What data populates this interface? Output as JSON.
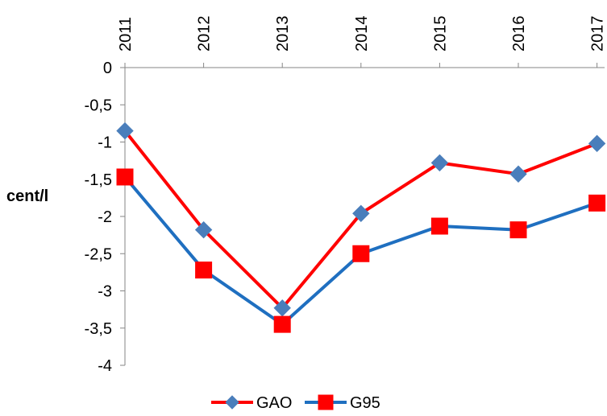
{
  "chart_data": {
    "type": "line",
    "x": [
      "2011",
      "2012",
      "2013",
      "2014",
      "2015",
      "2016",
      "2017"
    ],
    "ylabel": "cent/l",
    "ylim": [
      -4,
      0
    ],
    "yticks": [
      "0",
      "-0,5",
      "-1",
      "-1,5",
      "-2",
      "-2,5",
      "-3",
      "-3,5",
      "-4"
    ],
    "ytick_values": [
      0,
      -0.5,
      -1,
      -1.5,
      -2,
      -2.5,
      -3,
      -3.5,
      -4
    ],
    "x_axis_position": "top",
    "grid": false,
    "legend_position": "bottom",
    "series": [
      {
        "name": "GAO",
        "values": [
          -0.85,
          -2.18,
          -3.23,
          -1.96,
          -1.28,
          -1.43,
          -1.02
        ],
        "line_color": "#ff0000",
        "marker": "diamond",
        "marker_color": "#4a7ebb"
      },
      {
        "name": "G95",
        "values": [
          -1.47,
          -2.72,
          -3.45,
          -2.5,
          -2.13,
          -2.18,
          -1.82
        ],
        "line_color": "#1f6fc0",
        "marker": "square",
        "marker_color": "#ff0000"
      }
    ]
  }
}
